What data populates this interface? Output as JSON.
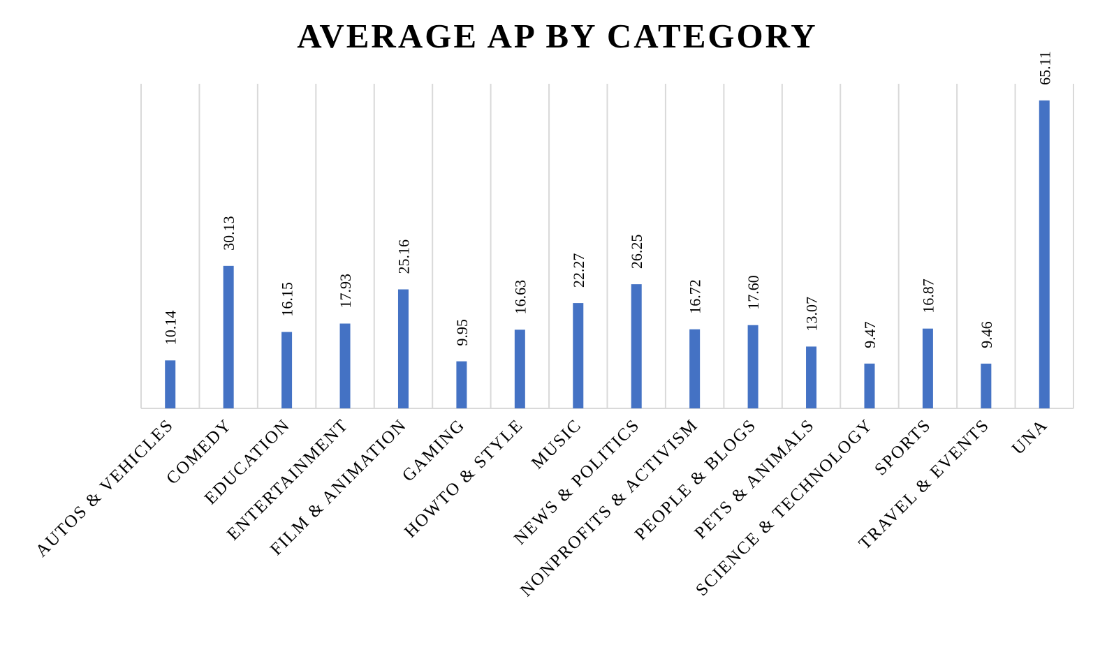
{
  "chart_data": {
    "type": "bar",
    "title": "AVERAGE AP BY CATEGORY",
    "xlabel": "",
    "ylabel": "",
    "categories": [
      "AUTOS & VEHICLES",
      "COMEDY",
      "EDUCATION",
      "ENTERTAINMENT",
      "FILM & ANIMATION",
      "GAMING",
      "HOWTO & STYLE",
      "MUSIC",
      "NEWS & POLITICS",
      "NONPROFITS & ACTIVISM",
      "PEOPLE & BLOGS",
      "PETS & ANIMALS",
      "SCIENCE & TECHNOLOGY",
      "SPORTS",
      "TRAVEL & EVENTS",
      "UNA"
    ],
    "values": [
      10.14,
      30.13,
      16.15,
      17.93,
      25.16,
      9.95,
      16.63,
      22.27,
      26.25,
      16.72,
      17.6,
      13.07,
      9.47,
      16.87,
      9.46,
      65.11
    ],
    "value_labels": [
      "10.14",
      "30.13",
      "16.15",
      "17.93",
      "25.16",
      "9.95",
      "16.63",
      "22.27",
      "26.25",
      "16.72",
      "17.60",
      "13.07",
      "9.47",
      "16.87",
      "9.46",
      "65.11"
    ],
    "ylim": [
      0,
      70
    ],
    "grid": "vertical",
    "legend": "none",
    "colors": {
      "bar": "#4472c4",
      "grid": "#d9d9d9",
      "text": "#000000"
    }
  }
}
